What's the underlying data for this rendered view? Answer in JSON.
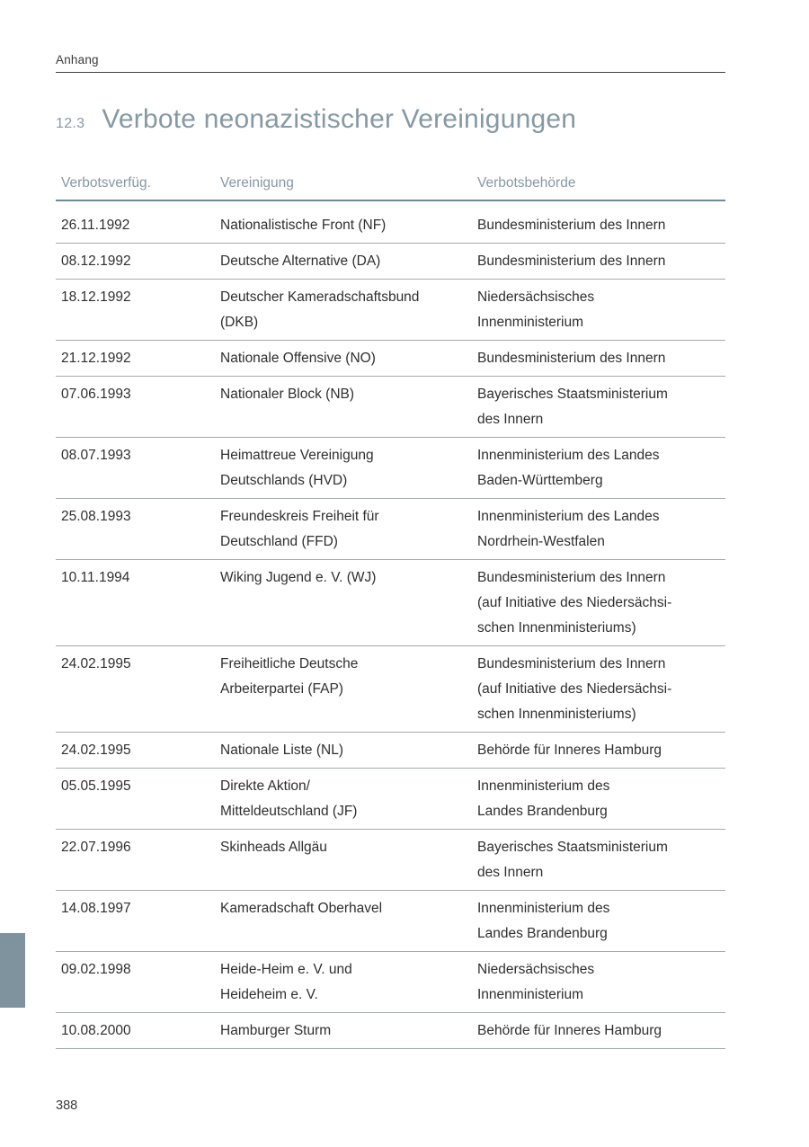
{
  "page": {
    "running_header": "Anhang",
    "page_number": "388"
  },
  "title": {
    "section_number": "12.3",
    "text": "Verbote neonazistischer Vereinigungen"
  },
  "table": {
    "columns": [
      "Verbotsverfüg.",
      "Vereinigung",
      "Verbotsbehörde"
    ],
    "rows": [
      {
        "date": "26.11.1992",
        "vereinigung": "Nationalistische Front (NF)",
        "behoerde": "Bundesministerium des Innern"
      },
      {
        "date": "08.12.1992",
        "vereinigung": "Deutsche Alternative (DA)",
        "behoerde": "Bundesministerium des Innern"
      },
      {
        "date": "18.12.1992",
        "vereinigung": "Deutscher Kameradschaftsbund\n(DKB)",
        "behoerde": "Niedersächsisches\nInnenministerium"
      },
      {
        "date": "21.12.1992",
        "vereinigung": "Nationale Offensive (NO)",
        "behoerde": "Bundesministerium des Innern"
      },
      {
        "date": "07.06.1993",
        "vereinigung": "Nationaler Block (NB)",
        "behoerde": "Bayerisches Staatsministerium\ndes Innern"
      },
      {
        "date": "08.07.1993",
        "vereinigung": "Heimattreue Vereinigung\nDeutschlands (HVD)",
        "behoerde": "Innenministerium des Landes\nBaden-Württemberg"
      },
      {
        "date": "25.08.1993",
        "vereinigung": "Freundeskreis Freiheit für\nDeutschland (FFD)",
        "behoerde": "Innenministerium des Landes\nNordrhein-Westfalen"
      },
      {
        "date": "10.11.1994",
        "vereinigung": "Wiking Jugend e. V. (WJ)",
        "behoerde": "Bundesministerium des Innern\n(auf Initiative des Niedersächsi-\nschen Innenministeriums)"
      },
      {
        "date": "24.02.1995",
        "vereinigung": "Freiheitliche Deutsche\nArbeiterpartei (FAP)",
        "behoerde": "Bundesministerium des Innern\n(auf Initiative des Niedersächsi-\nschen Innenministeriums)"
      },
      {
        "date": "24.02.1995",
        "vereinigung": "Nationale Liste (NL)",
        "behoerde": "Behörde für Inneres Hamburg"
      },
      {
        "date": "05.05.1995",
        "vereinigung": "Direkte Aktion/\nMitteldeutschland (JF)",
        "behoerde": "Innenministerium des\nLandes Brandenburg"
      },
      {
        "date": "22.07.1996",
        "vereinigung": "Skinheads Allgäu",
        "behoerde": "Bayerisches Staatsministerium\ndes Innern"
      },
      {
        "date": "14.08.1997",
        "vereinigung": "Kameradschaft Oberhavel",
        "behoerde": "Innenministerium des\nLandes Brandenburg"
      },
      {
        "date": "09.02.1998",
        "vereinigung": "Heide-Heim e. V. und\nHeideheim e. V.",
        "behoerde": "Niedersächsisches\nInnenministerium"
      },
      {
        "date": "10.08.2000",
        "vereinigung": "Hamburger Sturm",
        "behoerde": "Behörde für Inneres Hamburg"
      }
    ]
  },
  "colors": {
    "accent_slate": "#8699a4",
    "header_rule": "#6d8c98",
    "row_rule": "#a5aaac",
    "body_text": "#2f2f2f",
    "side_tab": "#7e939d"
  }
}
